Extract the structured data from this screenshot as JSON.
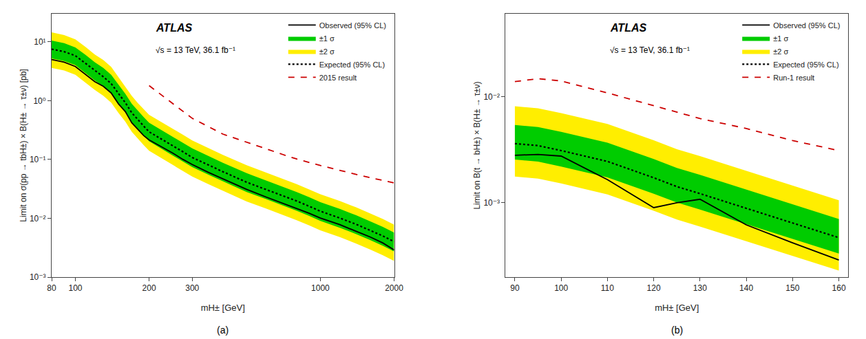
{
  "chart_data": [
    {
      "type": "line",
      "x_label": "mH± [GeV]",
      "y_label": "Limit on σ(pp → tbH±) × B(H± → τ±ν) [pb]",
      "log": true,
      "xlim": [
        80,
        2000
      ],
      "ylim": [
        0.001,
        30
      ],
      "xticks": [
        80,
        100,
        200,
        300,
        1000,
        2000
      ],
      "yticks": [
        {
          "value": 0.001,
          "label": "10⁻³"
        },
        {
          "value": 0.01,
          "label": "10⁻²"
        },
        {
          "value": 0.1,
          "label": "10⁻¹"
        },
        {
          "value": 1,
          "label": "10⁰"
        },
        {
          "value": 10,
          "label": "10¹"
        }
      ],
      "grid": false,
      "legend": "upper right",
      "x": [
        80,
        90,
        100,
        110,
        120,
        130,
        140,
        150,
        160,
        170,
        180,
        190,
        200,
        225,
        250,
        275,
        300,
        350,
        400,
        500,
        600,
        700,
        800,
        900,
        1000,
        1200,
        1400,
        1600,
        1800,
        2000
      ],
      "series": [
        {
          "name": "Observed (95% CL)",
          "color": "#000000",
          "line_style": "solid",
          "values": [
            5.0,
            4.5,
            3.8,
            2.75,
            2.1,
            1.75,
            1.35,
            0.88,
            0.65,
            0.42,
            0.32,
            0.255,
            0.215,
            0.165,
            0.128,
            0.1,
            0.082,
            0.06,
            0.047,
            0.031,
            0.023,
            0.018,
            0.0148,
            0.0122,
            0.0101,
            0.0078,
            0.006,
            0.0048,
            0.0038,
            0.0029
          ]
        },
        {
          "name": "±1 σ",
          "color": "#00cc00",
          "type": "band",
          "upper": [
            10.5,
            9.5,
            8.0,
            6.0,
            4.5,
            3.6,
            2.75,
            1.85,
            1.3,
            0.88,
            0.665,
            0.525,
            0.42,
            0.315,
            0.245,
            0.192,
            0.154,
            0.114,
            0.088,
            0.0585,
            0.044,
            0.0348,
            0.028,
            0.0228,
            0.0188,
            0.01445,
            0.01125,
            0.00885,
            0.00715,
            0.0057
          ],
          "lower": [
            5.2,
            4.7,
            4.0,
            2.95,
            2.2,
            1.75,
            1.34,
            0.895,
            0.632,
            0.426,
            0.323,
            0.254,
            0.203,
            0.152,
            0.118,
            0.0925,
            0.074,
            0.0548,
            0.0424,
            0.028,
            0.02115,
            0.01675,
            0.01345,
            0.01095,
            0.00902,
            0.00692,
            0.00539,
            0.00424,
            0.0034,
            0.00272
          ]
        },
        {
          "name": "±2 σ",
          "color": "#ffee00",
          "type": "band",
          "upper": [
            14.5,
            13.0,
            11.0,
            8.2,
            6.1,
            4.9,
            3.75,
            2.5,
            1.77,
            1.2,
            0.905,
            0.715,
            0.572,
            0.43,
            0.334,
            0.262,
            0.21,
            0.155,
            0.12,
            0.0797,
            0.06,
            0.0474,
            0.0382,
            0.031,
            0.0256,
            0.01967,
            0.01532,
            0.01205,
            0.00973,
            0.00777
          ],
          "lower": [
            3.6,
            3.25,
            2.76,
            2.035,
            1.52,
            1.21,
            0.926,
            0.618,
            0.437,
            0.294,
            0.223,
            0.1755,
            0.1403,
            0.1052,
            0.0815,
            0.0639,
            0.0512,
            0.03789,
            0.02933,
            0.01936,
            0.01461,
            0.01157,
            0.009295,
            0.007563,
            0.006237,
            0.004783,
            0.003726,
            0.00293,
            0.002352,
            0.00188
          ]
        },
        {
          "name": "Expected (95% CL)",
          "color": "#000000",
          "line_style": "dotted",
          "values": [
            7.5,
            6.8,
            5.8,
            4.3,
            3.2,
            2.55,
            1.95,
            1.3,
            0.92,
            0.62,
            0.47,
            0.37,
            0.295,
            0.222,
            0.172,
            0.135,
            0.108,
            0.08,
            0.062,
            0.041,
            0.031,
            0.0245,
            0.0197,
            0.016,
            0.0132,
            0.0101,
            0.0079,
            0.0062,
            0.005,
            0.004
          ]
        },
        {
          "name": "2015 result",
          "color": "#cc0000",
          "line_style": "dashed",
          "x": [
            200,
            250,
            300,
            400,
            500,
            600,
            700,
            800,
            1000,
            1500,
            2000
          ],
          "values": [
            1.8,
            0.9,
            0.5,
            0.27,
            0.195,
            0.152,
            0.122,
            0.102,
            0.079,
            0.052,
            0.04
          ]
        }
      ],
      "annotations": [
        {
          "text": "ATLAS"
        },
        {
          "text": "√s = 13 TeV, 36.1 fb⁻¹"
        }
      ],
      "panel_label": "(a)"
    },
    {
      "type": "line",
      "x_label": "mH± [GeV]",
      "y_label": "Limit on B(t → bH±) × B(H± → τ±ν)",
      "log": "y",
      "xlim": [
        88,
        162
      ],
      "ylim": [
        0.0002,
        0.06
      ],
      "xticks": [
        90,
        100,
        110,
        120,
        130,
        140,
        150,
        160
      ],
      "yticks": [
        {
          "value": 0.001,
          "label": "10⁻³"
        },
        {
          "value": 0.01,
          "label": "10⁻²"
        }
      ],
      "grid": false,
      "legend": "upper right",
      "x": [
        90,
        95,
        100,
        110,
        120,
        125,
        130,
        140,
        150,
        160
      ],
      "series": [
        {
          "name": "Observed (95% CL)",
          "color": "#000000",
          "line_style": "solid",
          "values": [
            0.0028,
            0.00285,
            0.00275,
            0.00165,
            0.0009,
            0.001,
            0.00108,
            0.00062,
            0.00042,
            0.00029
          ]
        },
        {
          "name": "±1 σ",
          "color": "#00cc00",
          "type": "band",
          "upper": [
            0.0054,
            0.00515,
            0.00465,
            0.00368,
            0.00258,
            0.00213,
            0.00183,
            0.001335,
            0.000975,
            0.000705
          ],
          "lower": [
            0.00255,
            0.00244,
            0.00219,
            0.001735,
            0.001218,
            0.001005,
            0.000864,
            0.00063,
            0.00046,
            0.000333
          ]
        },
        {
          "name": "±2 σ",
          "color": "#ffee00",
          "type": "band",
          "upper": [
            0.0081,
            0.00774,
            0.006975,
            0.005513,
            0.003871,
            0.003195,
            0.002745,
            0.002003,
            0.001463,
            0.001058
          ],
          "lower": [
            0.001764,
            0.001686,
            0.001519,
            0.001201,
            0.000843,
            0.0006957,
            0.0005981,
            0.0004361,
            0.0003185,
            0.0002303
          ]
        },
        {
          "name": "Expected (95% CL)",
          "color": "#000000",
          "line_style": "dotted",
          "values": [
            0.0036,
            0.00345,
            0.0031,
            0.00245,
            0.00172,
            0.00142,
            0.00122,
            0.00089,
            0.00065,
            0.00047
          ]
        },
        {
          "name": "Run-1 result",
          "color": "#cc0000",
          "line_style": "dashed",
          "x": [
            90,
            95,
            100,
            110,
            120,
            130,
            140,
            150,
            160
          ],
          "values": [
            0.0138,
            0.0147,
            0.014,
            0.0108,
            0.0082,
            0.0062,
            0.005,
            0.00385,
            0.0031
          ]
        }
      ],
      "annotations": [
        {
          "text": "ATLAS"
        },
        {
          "text": "√s = 13 TeV, 36.1 fb⁻¹"
        }
      ],
      "panel_label": "(b)"
    }
  ]
}
